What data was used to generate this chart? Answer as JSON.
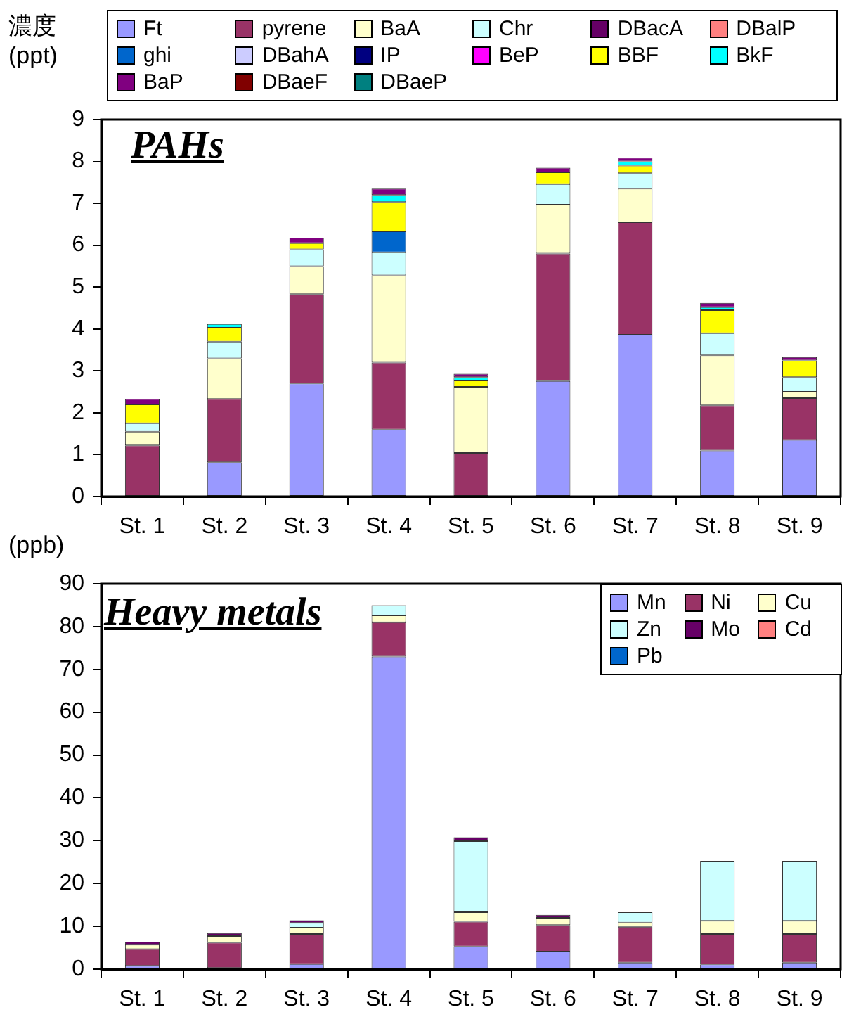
{
  "chart_data": [
    {
      "type": "bar",
      "title": "PAHs",
      "ylabel": "濃度 (ppt)",
      "stacked": true,
      "legend": "top",
      "grid": false,
      "categories": [
        "St. 1",
        "St. 2",
        "St. 3",
        "St. 4",
        "St. 5",
        "St. 6",
        "St. 7",
        "St. 8",
        "St. 9"
      ],
      "ylim": [
        0,
        9
      ],
      "yticks": [
        0,
        1,
        2,
        3,
        4,
        5,
        6,
        7,
        8,
        9
      ],
      "series": [
        {
          "name": "Ft",
          "color": "#9999ff",
          "values": [
            null,
            0.82,
            2.7,
            1.6,
            null,
            2.76,
            3.86,
            1.1,
            1.35
          ]
        },
        {
          "name": "pyrene",
          "color": "#993366",
          "values": [
            1.22,
            1.51,
            2.13,
            1.6,
            1.04,
            3.04,
            2.69,
            1.08,
            1.0
          ]
        },
        {
          "name": "BaA",
          "color": "#ffffcc",
          "values": [
            0.33,
            0.97,
            0.67,
            2.08,
            1.58,
            1.17,
            0.8,
            1.19,
            0.15
          ]
        },
        {
          "name": "Chr",
          "color": "#ccffff",
          "values": [
            0.2,
            0.4,
            0.4,
            0.55,
            null,
            0.49,
            0.37,
            0.53,
            0.35
          ]
        },
        {
          "name": "DBacA",
          "color": "#660066",
          "values": [
            null,
            null,
            null,
            null,
            null,
            null,
            null,
            null,
            null
          ]
        },
        {
          "name": "DBalP",
          "color": "#ff8080",
          "values": [
            null,
            null,
            null,
            null,
            null,
            null,
            null,
            null,
            null
          ]
        },
        {
          "name": "ghi",
          "color": "#0066cc",
          "values": [
            null,
            null,
            null,
            0.5,
            null,
            null,
            null,
            null,
            null
          ]
        },
        {
          "name": "DBahA",
          "color": "#ccccff",
          "values": [
            null,
            null,
            null,
            null,
            null,
            null,
            null,
            null,
            null
          ]
        },
        {
          "name": "IP",
          "color": "#000080",
          "values": [
            null,
            null,
            null,
            null,
            null,
            null,
            null,
            null,
            null
          ]
        },
        {
          "name": "BeP",
          "color": "#ff00ff",
          "values": [
            null,
            null,
            null,
            null,
            null,
            null,
            null,
            null,
            null
          ]
        },
        {
          "name": "BBF",
          "color": "#ffff00",
          "values": [
            0.45,
            0.33,
            0.15,
            0.7,
            0.15,
            0.28,
            0.18,
            0.55,
            0.4
          ]
        },
        {
          "name": "BkF",
          "color": "#00ffff",
          "values": [
            null,
            0.09,
            null,
            0.17,
            0.08,
            null,
            0.1,
            0.07,
            null
          ]
        },
        {
          "name": "BaP",
          "color": "#800080",
          "values": [
            0.13,
            null,
            0.13,
            0.15,
            0.08,
            0.11,
            0.09,
            0.1,
            0.08
          ]
        },
        {
          "name": "DBaeF",
          "color": "#800000",
          "values": [
            null,
            null,
            null,
            null,
            null,
            null,
            null,
            null,
            null
          ]
        },
        {
          "name": "DBaeP",
          "color": "#008080",
          "values": [
            null,
            null,
            null,
            null,
            null,
            null,
            null,
            null,
            null
          ]
        }
      ]
    },
    {
      "type": "bar",
      "title": "Heavy metals",
      "ylabel": "(ppb)",
      "stacked": true,
      "legend": "top right",
      "grid": false,
      "categories": [
        "St. 1",
        "St. 2",
        "St. 3",
        "St. 4",
        "St. 5",
        "St. 6",
        "St. 7",
        "St. 8",
        "St. 9"
      ],
      "ylim": [
        0,
        90
      ],
      "yticks": [
        0,
        10,
        20,
        30,
        40,
        50,
        60,
        70,
        80,
        90
      ],
      "series": [
        {
          "name": "Mn",
          "color": "#9999ff",
          "values": [
            0.8,
            0.3,
            1.2,
            73,
            5.3,
            4.1,
            1.5,
            1.1,
            1.5
          ]
        },
        {
          "name": "Ni",
          "color": "#993366",
          "values": [
            3.9,
            5.9,
            7,
            8,
            5.8,
            6.2,
            8.4,
            7.1,
            6.7
          ]
        },
        {
          "name": "Cu",
          "color": "#ffffcc",
          "values": [
            1,
            1.5,
            1.5,
            1.6,
            2.2,
            1.7,
            1,
            3.1,
            3.1
          ]
        },
        {
          "name": "Zn",
          "color": "#ccffff",
          "values": [
            null,
            null,
            1.1,
            2.4,
            16.6,
            null,
            2.4,
            14,
            14
          ]
        },
        {
          "name": "Mo",
          "color": "#660066",
          "values": [
            0.7,
            0.7,
            0.6,
            null,
            0.9,
            0.7,
            null,
            null,
            null
          ]
        },
        {
          "name": "Cd",
          "color": "#ff8080",
          "values": [
            null,
            null,
            null,
            null,
            null,
            null,
            null,
            null,
            null
          ]
        },
        {
          "name": "Pb",
          "color": "#0066cc",
          "values": [
            null,
            null,
            null,
            null,
            null,
            null,
            null,
            null,
            null
          ]
        }
      ]
    }
  ]
}
